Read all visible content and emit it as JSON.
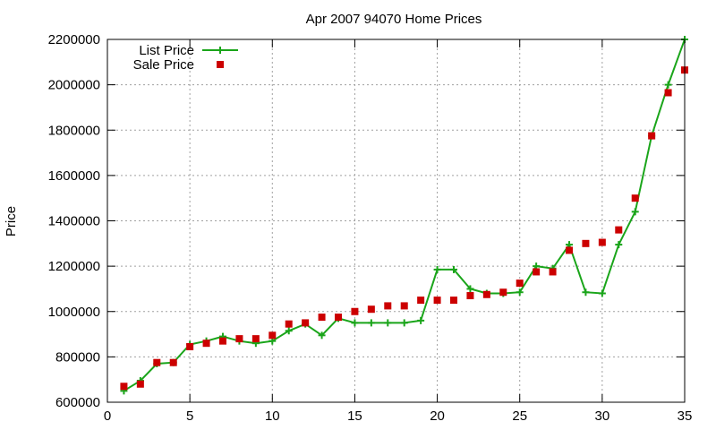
{
  "chart_data": {
    "type": "line",
    "title": "Apr 2007 94070 Home Prices",
    "xlabel": "",
    "ylabel": "Price",
    "xlim": [
      0,
      35
    ],
    "ylim": [
      600000,
      2200000
    ],
    "x_ticks": [
      0,
      5,
      10,
      15,
      20,
      25,
      30,
      35
    ],
    "y_ticks": [
      600000,
      800000,
      1000000,
      1200000,
      1400000,
      1600000,
      1800000,
      2000000,
      2200000
    ],
    "grid": true,
    "legend_position": "top-left",
    "series": [
      {
        "name": "List Price",
        "style": "line-with-plus-markers",
        "color": "#1aa51a",
        "x": [
          1,
          2,
          3,
          4,
          5,
          6,
          7,
          8,
          9,
          10,
          11,
          12,
          13,
          14,
          15,
          16,
          17,
          18,
          19,
          20,
          21,
          22,
          23,
          24,
          25,
          26,
          27,
          28,
          29,
          30,
          31,
          32,
          33,
          34,
          35
        ],
        "y": [
          650000,
          695000,
          770000,
          775000,
          855000,
          870000,
          890000,
          870000,
          860000,
          870000,
          915000,
          945000,
          895000,
          970000,
          950000,
          950000,
          950000,
          950000,
          960000,
          1185000,
          1185000,
          1100000,
          1080000,
          1080000,
          1085000,
          1200000,
          1190000,
          1295000,
          1085000,
          1080000,
          1295000,
          1440000,
          1775000,
          2000000,
          2200000
        ]
      },
      {
        "name": "Sale Price",
        "style": "square-markers",
        "color": "#cc0000",
        "x": [
          1,
          2,
          3,
          4,
          5,
          6,
          7,
          8,
          9,
          10,
          11,
          12,
          13,
          14,
          15,
          16,
          17,
          18,
          19,
          20,
          21,
          22,
          23,
          24,
          25,
          26,
          27,
          28,
          29,
          30,
          31,
          32,
          33,
          34,
          35
        ],
        "y": [
          670000,
          680000,
          775000,
          775000,
          845000,
          860000,
          870000,
          880000,
          880000,
          895000,
          945000,
          950000,
          975000,
          975000,
          1000000,
          1010000,
          1025000,
          1025000,
          1050000,
          1050000,
          1050000,
          1070000,
          1075000,
          1085000,
          1125000,
          1175000,
          1175000,
          1270000,
          1300000,
          1305000,
          1360000,
          1500000,
          1775000,
          1965000,
          2065000
        ]
      }
    ]
  }
}
